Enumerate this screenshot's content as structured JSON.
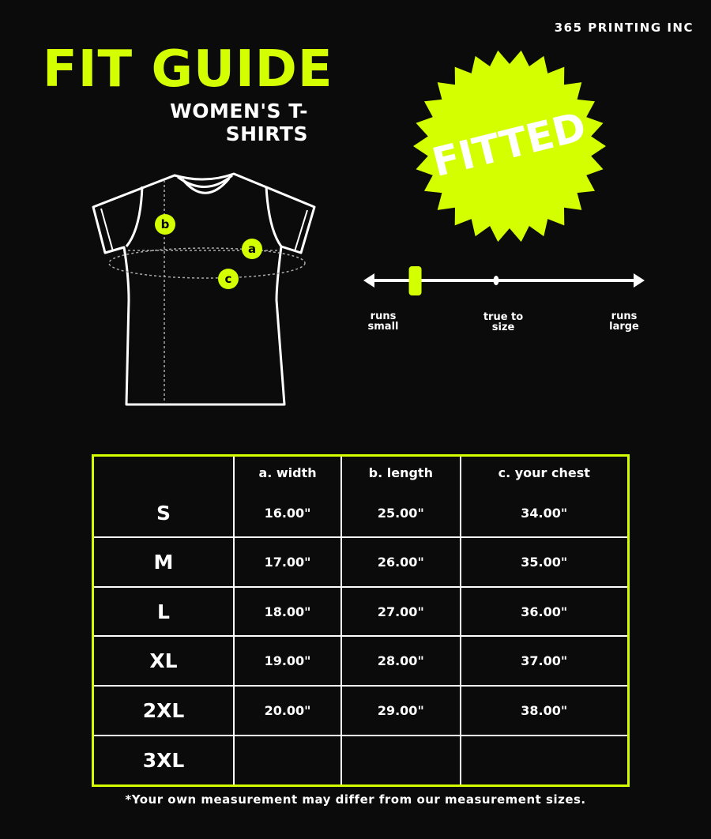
{
  "brand": "365 PRINTING INC",
  "title": "FIT GUIDE",
  "subtitle": "WOMEN'S T-SHIRTS",
  "badge": "FITTED",
  "accent_color": "#d4ff00",
  "diagram": {
    "markers": [
      "b",
      "a",
      "c"
    ]
  },
  "fit_scale": {
    "labels": {
      "small": "runs small",
      "true": "true to size",
      "large": "runs large"
    },
    "fit_level": 0.18
  },
  "table": {
    "headers": [
      "",
      "a. width",
      "b. length",
      "c. your chest"
    ],
    "rows": [
      [
        "S",
        "16.00\"",
        "25.00\"",
        "34.00\""
      ],
      [
        "M",
        "17.00\"",
        "26.00\"",
        "35.00\""
      ],
      [
        "L",
        "18.00\"",
        "27.00\"",
        "36.00\""
      ],
      [
        "XL",
        "19.00\"",
        "28.00\"",
        "37.00\""
      ],
      [
        "2XL",
        "20.00\"",
        "29.00\"",
        "38.00\""
      ],
      [
        "3XL",
        "",
        "",
        ""
      ]
    ]
  },
  "footnote": "*Your own measurement may differ from our measurement sizes."
}
